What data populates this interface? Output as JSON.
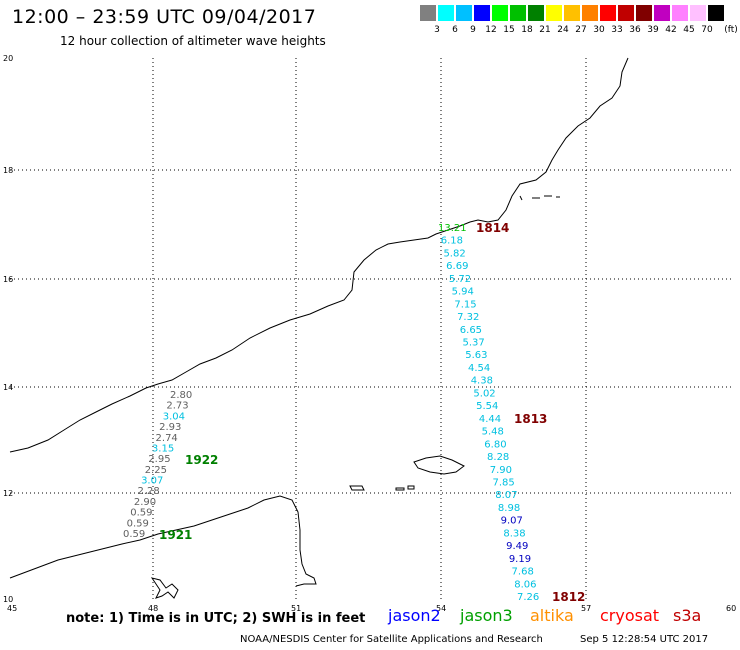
{
  "header": {
    "title": "12:00 – 23:59 UTC 09/04/2017",
    "subtitle": "12 hour collection of altimeter wave heights"
  },
  "legend": {
    "unit": "(ft)",
    "items": [
      {
        "color": "#808080",
        "label": "3"
      },
      {
        "color": "#00ffff",
        "label": "6"
      },
      {
        "color": "#00c0ff",
        "label": "9"
      },
      {
        "color": "#0000ff",
        "label": "12"
      },
      {
        "color": "#00ff00",
        "label": "15"
      },
      {
        "color": "#00c000",
        "label": "18"
      },
      {
        "color": "#008000",
        "label": "21"
      },
      {
        "color": "#ffff00",
        "label": "24"
      },
      {
        "color": "#ffc000",
        "label": "27"
      },
      {
        "color": "#ff8000",
        "label": "30"
      },
      {
        "color": "#ff0000",
        "label": "33"
      },
      {
        "color": "#c00000",
        "label": "36"
      },
      {
        "color": "#800000",
        "label": "39"
      },
      {
        "color": "#c000c0",
        "label": "42"
      },
      {
        "color": "#ff80ff",
        "label": "45"
      },
      {
        "color": "#ffc0ff",
        "label": "70"
      },
      {
        "color": "#000000",
        "label": ""
      }
    ]
  },
  "axes": {
    "x_ticks": [
      "45",
      "48",
      "51",
      "54",
      "57",
      "60"
    ],
    "y_ticks": [
      "20",
      "18",
      "16",
      "14",
      "12",
      "10"
    ]
  },
  "tracks": [
    {
      "pass": "1922",
      "pass_color": "#008000",
      "points": [
        {
          "v": "2.80",
          "c": "#606060"
        },
        {
          "v": "2.73",
          "c": "#606060"
        },
        {
          "v": "3.04",
          "c": "#00c0e0"
        },
        {
          "v": "2.93",
          "c": "#606060"
        },
        {
          "v": "2.74",
          "c": "#606060"
        },
        {
          "v": "3.15",
          "c": "#00c0e0"
        },
        {
          "v": "2.95",
          "c": "#606060"
        },
        {
          "v": "2.25",
          "c": "#606060"
        },
        {
          "v": "3.07",
          "c": "#00c0e0"
        },
        {
          "v": "2.28",
          "c": "#606060"
        },
        {
          "v": "2.90",
          "c": "#606060"
        },
        {
          "v": "0.59",
          "c": "#606060"
        },
        {
          "v": "0.59",
          "c": "#606060"
        },
        {
          "v": "0.59",
          "c": "#606060"
        }
      ]
    },
    {
      "pass": "1813",
      "pass_color": "#800000",
      "points": [
        {
          "v": "13.21",
          "c": "#00c000"
        },
        {
          "v": "6.18",
          "c": "#00c0e0"
        },
        {
          "v": "5.82",
          "c": "#00c0e0"
        },
        {
          "v": "6.69",
          "c": "#00c0e0"
        },
        {
          "v": "5.72",
          "c": "#00c0e0"
        },
        {
          "v": "5.94",
          "c": "#00c0e0"
        },
        {
          "v": "7.15",
          "c": "#00c0e0"
        },
        {
          "v": "7.32",
          "c": "#00c0e0"
        },
        {
          "v": "6.65",
          "c": "#00c0e0"
        },
        {
          "v": "5.37",
          "c": "#00c0e0"
        },
        {
          "v": "5.63",
          "c": "#00c0e0"
        },
        {
          "v": "4.54",
          "c": "#00c0e0"
        },
        {
          "v": "4.38",
          "c": "#00c0e0"
        },
        {
          "v": "5.02",
          "c": "#00c0e0"
        },
        {
          "v": "5.54",
          "c": "#00c0e0"
        },
        {
          "v": "4.44",
          "c": "#00c0e0"
        },
        {
          "v": "5.48",
          "c": "#00c0e0"
        },
        {
          "v": "6.80",
          "c": "#00c0e0"
        },
        {
          "v": "8.28",
          "c": "#00c0e0"
        },
        {
          "v": "7.90",
          "c": "#00c0e0"
        },
        {
          "v": "7.85",
          "c": "#00c0e0"
        },
        {
          "v": "8.07",
          "c": "#00c0e0"
        },
        {
          "v": "8.98",
          "c": "#00c0e0"
        },
        {
          "v": "9.07",
          "c": "#0000c0"
        },
        {
          "v": "8.38",
          "c": "#00c0e0"
        },
        {
          "v": "9.49",
          "c": "#0000c0"
        },
        {
          "v": "9.19",
          "c": "#0000c0"
        },
        {
          "v": "7.68",
          "c": "#00c0e0"
        },
        {
          "v": "8.06",
          "c": "#00c0e0"
        },
        {
          "v": "7.26",
          "c": "#00c0e0"
        }
      ]
    }
  ],
  "pass_labels": {
    "top": {
      "text": "1814",
      "color": "#800000"
    },
    "bottom": {
      "text": "1812",
      "color": "#800000"
    },
    "west_bottom": {
      "text": "1921",
      "color": "#008000"
    }
  },
  "footer": {
    "note": "note: 1) Time is in UTC; 2) SWH is in feet",
    "satellites": [
      {
        "name": "jason2",
        "color": "#0000ff"
      },
      {
        "name": "jason3",
        "color": "#00a000"
      },
      {
        "name": "altika",
        "color": "#ff9000"
      },
      {
        "name": "cryosat",
        "color": "#ff0000"
      },
      {
        "name": "s3a",
        "color": "#c00000"
      }
    ],
    "credit": "NOAA/NESDIS Center for Satellite Applications and Research",
    "timestamp": "Sep  5 12:28:54 UTC 2017"
  }
}
